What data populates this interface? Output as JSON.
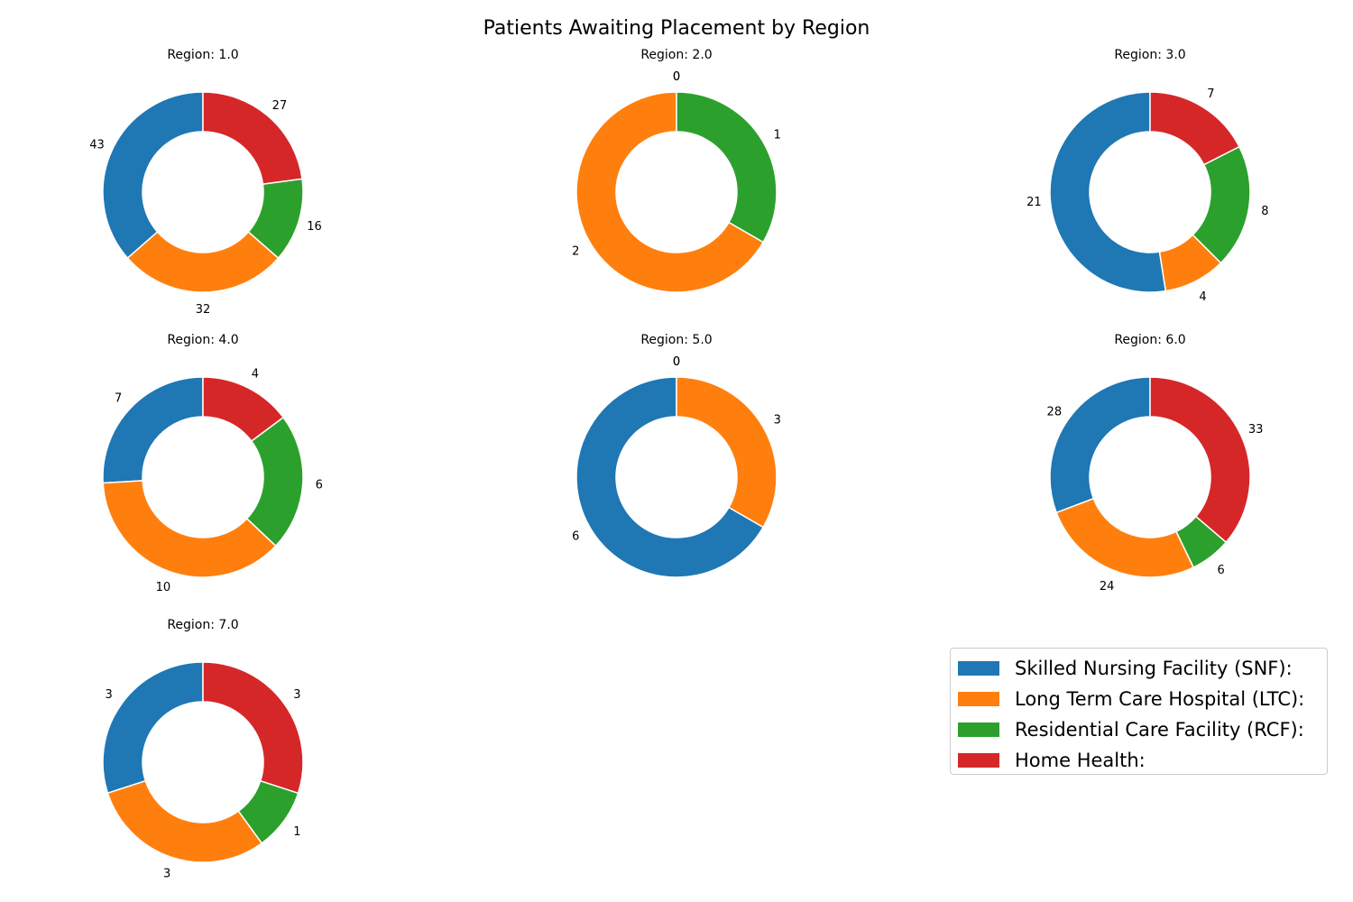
{
  "chart_data": {
    "type": "pie",
    "style": "donut",
    "title": "Patients Awaiting Placement by Region",
    "categories": [
      "Skilled Nursing Facility (SNF):",
      "Long Term Care Hospital (LTC):",
      "Residential Care Facility (RCF):",
      "Home Health:"
    ],
    "colors": [
      "#1f77b4",
      "#ff7f0e",
      "#2ca02c",
      "#d62728"
    ],
    "legend_position": "bottom-right",
    "charts": [
      {
        "title": "Region: 1.0",
        "values": [
          43,
          32,
          16,
          27
        ]
      },
      {
        "title": "Region: 2.0",
        "values": [
          0,
          2,
          1,
          0
        ]
      },
      {
        "title": "Region: 3.0",
        "values": [
          21,
          4,
          8,
          7
        ]
      },
      {
        "title": "Region: 4.0",
        "values": [
          7,
          10,
          6,
          4
        ]
      },
      {
        "title": "Region: 5.0",
        "values": [
          6,
          3,
          0,
          0
        ]
      },
      {
        "title": "Region: 6.0",
        "values": [
          28,
          24,
          6,
          33
        ]
      },
      {
        "title": "Region: 7.0",
        "values": [
          3,
          3,
          1,
          3
        ]
      }
    ]
  }
}
